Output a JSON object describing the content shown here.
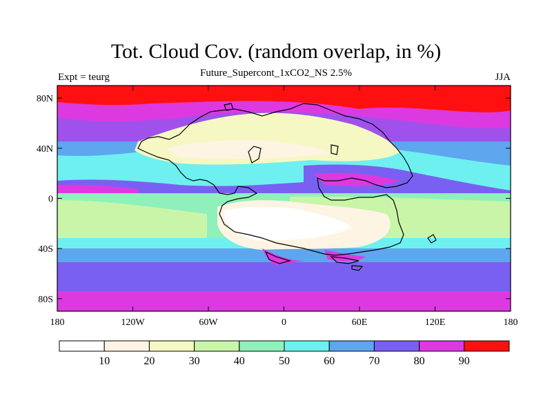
{
  "title": "Tot. Cloud Cov. (random overlap, in %)",
  "subtitle": "Future_Supercont_1xCO2_NS 2.5%",
  "left_label": "Expt = teurg",
  "right_label": "JJA",
  "map": {
    "lon_ticks": [
      "180",
      "120W",
      "60W",
      "0",
      "60E",
      "120E",
      "180"
    ],
    "lat_ticks": [
      "80N",
      "40N",
      "0",
      "40S",
      "80S"
    ],
    "lat_tick_values": [
      80,
      40,
      0,
      -40,
      -80
    ],
    "lon_range": [
      -180,
      180
    ],
    "lat_range": [
      -90,
      90
    ]
  },
  "colorbar": {
    "labels": [
      "10",
      "20",
      "30",
      "40",
      "50",
      "60",
      "70",
      "80",
      "90"
    ],
    "colors": [
      "#ffffff",
      "#fdf4e3",
      "#f5f8c2",
      "#c9f5a8",
      "#8ff0bc",
      "#6ef0f0",
      "#5ea6ee",
      "#7a60f2",
      "#dc3ae0",
      "#ff1010"
    ]
  }
}
